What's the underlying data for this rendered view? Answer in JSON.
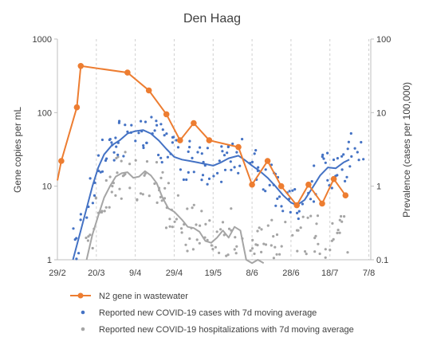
{
  "chart_data": {
    "type": "line",
    "title": "Den Haag",
    "ylabel_left": "Gene copies per mL",
    "ylabel_right": "Prevalence (cases per 100,000)",
    "y_scale": "log",
    "ylim_left": [
      1,
      1000
    ],
    "ylim_right": [
      0.1,
      100
    ],
    "y_ticks_left": [
      "1",
      "10",
      "100",
      "1000"
    ],
    "y_ticks_right": [
      "0.1",
      "1",
      "10",
      "100"
    ],
    "x_ticks": [
      "29/2",
      "20/3",
      "9/4",
      "29/4",
      "19/5",
      "8/6",
      "28/6",
      "18/7",
      "7/8"
    ],
    "grid_vertical": true,
    "legend_position": "bottom",
    "series": [
      {
        "name": "N2 gene in wastewater",
        "axis": "left",
        "color": "#ED7D31",
        "style": "line-markers",
        "points": [
          [
            "2/3",
            22
          ],
          [
            "10/3",
            118
          ],
          [
            "12/3",
            430
          ],
          [
            "5/4",
            350
          ],
          [
            "16/4",
            200
          ],
          [
            "25/4",
            95
          ],
          [
            "2/5",
            42
          ],
          [
            "9/5",
            72
          ],
          [
            "17/5",
            42
          ],
          [
            "1/6",
            34
          ],
          [
            "8/6",
            10.5
          ],
          [
            "16/6",
            22
          ],
          [
            "23/6",
            10
          ],
          [
            "1/7",
            5.5
          ],
          [
            "7/7",
            10.5
          ],
          [
            "14/7",
            5.8
          ],
          [
            "20/7",
            12.5
          ],
          [
            "26/7",
            7.5
          ]
        ],
        "lead_in": [
          "29/2",
          12
        ]
      },
      {
        "name": "Reported new COVID-19 cases with 7d moving average",
        "axis": "right",
        "color": "#4472C4",
        "style": "dots+line",
        "moving_average": [
          [
            "8/3",
            0.1
          ],
          [
            "12/3",
            0.25
          ],
          [
            "15/3",
            0.5
          ],
          [
            "18/3",
            1.0
          ],
          [
            "21/3",
            1.8
          ],
          [
            "24/3",
            2.7
          ],
          [
            "28/3",
            3.6
          ],
          [
            "1/4",
            4.2
          ],
          [
            "5/4",
            5.2
          ],
          [
            "9/4",
            5.6
          ],
          [
            "13/4",
            5.8
          ],
          [
            "17/4",
            5.2
          ],
          [
            "21/4",
            4.2
          ],
          [
            "25/4",
            3.2
          ],
          [
            "29/4",
            2.5
          ],
          [
            "3/5",
            2.3
          ],
          [
            "7/5",
            2.2
          ],
          [
            "11/5",
            2.1
          ],
          [
            "15/5",
            2.0
          ],
          [
            "19/5",
            1.9
          ],
          [
            "23/5",
            2.1
          ],
          [
            "27/5",
            2.4
          ],
          [
            "1/6",
            2.6
          ],
          [
            "4/6",
            2.3
          ],
          [
            "8/6",
            1.9
          ],
          [
            "12/6",
            1.6
          ],
          [
            "16/6",
            1.3
          ],
          [
            "20/6",
            1.0
          ],
          [
            "24/6",
            0.75
          ],
          [
            "28/6",
            0.6
          ],
          [
            "1/7",
            0.55
          ],
          [
            "5/7",
            0.65
          ],
          [
            "9/7",
            0.95
          ],
          [
            "13/7",
            1.4
          ],
          [
            "17/7",
            1.8
          ],
          [
            "21/7",
            1.75
          ],
          [
            "25/7",
            2.1
          ],
          [
            "28/7",
            2.3
          ]
        ]
      },
      {
        "name": "Reported new COVID-19 hospitalizations with 7d moving average",
        "axis": "right",
        "color": "#A5A5A5",
        "style": "dots+line",
        "moving_average": [
          [
            "15/3",
            0.1
          ],
          [
            "18/3",
            0.22
          ],
          [
            "21/3",
            0.4
          ],
          [
            "24/3",
            0.7
          ],
          [
            "27/3",
            1.0
          ],
          [
            "30/3",
            1.35
          ],
          [
            "2/4",
            1.5
          ],
          [
            "5/4",
            1.55
          ],
          [
            "8/4",
            1.3
          ],
          [
            "11/4",
            1.35
          ],
          [
            "14/4",
            1.6
          ],
          [
            "17/4",
            1.4
          ],
          [
            "20/4",
            1.1
          ],
          [
            "23/4",
            0.7
          ],
          [
            "26/4",
            0.5
          ],
          [
            "29/4",
            0.45
          ],
          [
            "3/5",
            0.35
          ],
          [
            "6/5",
            0.28
          ],
          [
            "9/5",
            0.27
          ],
          [
            "12/5",
            0.24
          ],
          [
            "15/5",
            0.18
          ],
          [
            "18/5",
            0.17
          ],
          [
            "21/5",
            0.2
          ],
          [
            "24/5",
            0.25
          ],
          [
            "27/5",
            0.2
          ],
          [
            "30/5",
            0.28
          ],
          [
            "2/6",
            0.25
          ],
          [
            "5/6",
            0.1
          ],
          [
            "8/6",
            0.09
          ],
          [
            "11/6",
            0.1
          ],
          [
            "14/6",
            0.09
          ]
        ]
      }
    ],
    "legend": [
      "N2 gene in wastewater",
      "Reported new COVID-19 cases with 7d moving average",
      "Reported new COVID-19 hospitalizations with 7d moving average"
    ]
  }
}
